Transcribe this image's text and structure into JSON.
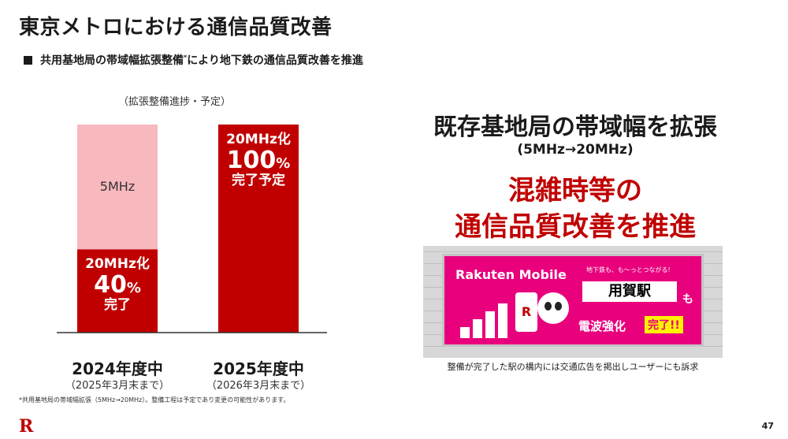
{
  "title": "東京メトロにおける通信品質改善",
  "subtitle": {
    "before": "共用基地局の帯域幅拡張整備",
    "mark": "*",
    "after": "により地下鉄の通信品質改善を推進"
  },
  "chart_data": {
    "type": "bar",
    "caption": "（拡張整備進捗・予定）",
    "categories": [
      "2024年度中",
      "2025年度中"
    ],
    "category_subs": [
      "（2025年3月末まで）",
      "（2026年3月末まで）"
    ],
    "ylim": [
      0,
      100
    ],
    "series": [
      {
        "name": "20MHz化",
        "values": [
          40,
          100
        ]
      },
      {
        "name": "5MHz",
        "values": [
          60,
          0
        ]
      }
    ],
    "annotations": [
      {
        "line1": "20MHz化",
        "line2": "40",
        "unit": "%",
        "line3": "完了"
      },
      {
        "line1": "20MHz化",
        "line2": "100",
        "unit": "%",
        "line3": "完了予定"
      }
    ],
    "remainder_label": "5MHz",
    "colors": {
      "done": "#c00000",
      "remaining": "#f7b8be"
    }
  },
  "right": {
    "heading": "既存基地局の帯域幅を拡張",
    "sub": "(5MHz→20MHz)",
    "red_line1": "混雑時等の",
    "red_line2": "通信品質改善を推進",
    "poster": {
      "brand": "Rakuten Mobile",
      "small": "地下鉄も、も～っとつながる!",
      "station": "用賀駅",
      "mo": "も",
      "kyoka": "電波強化",
      "done": "完了!!",
      "phone_letter": "R"
    },
    "photo_caption": "整備が完了した駅の構内には交通広告を掲出しユーザーにも訴求"
  },
  "footnote": "*共用基地局の帯域幅拡張（5MHz→20MHz）。整備工程は予定であり変更の可能性があります。",
  "logo": "R",
  "page_number": "47"
}
